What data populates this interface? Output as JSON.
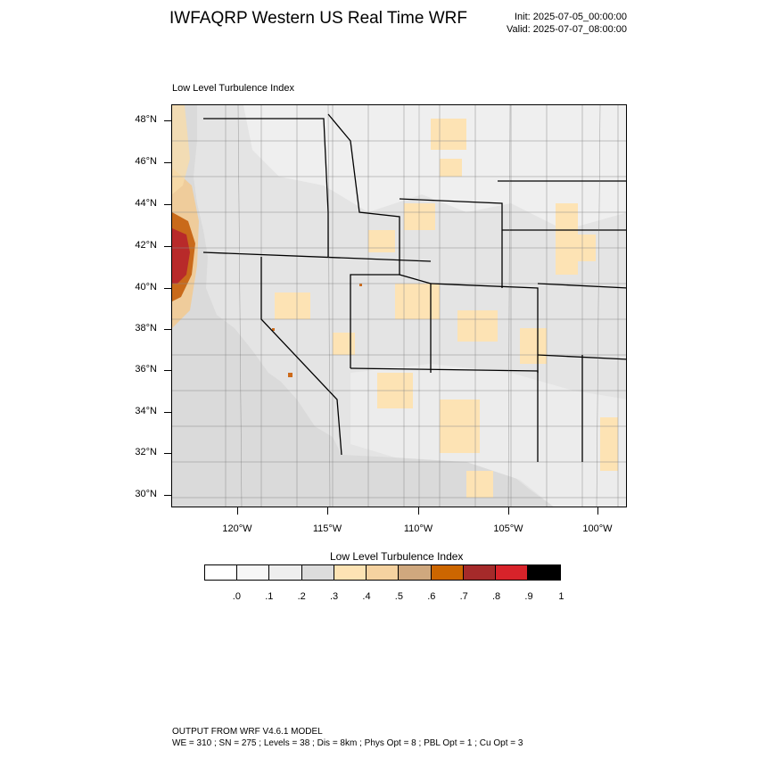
{
  "header": {
    "title": "IWFAQRP Western US Real Time WRF",
    "init": "Init: 2025-07-05_00:00:00",
    "valid": "Valid: 2025-07-07_08:00:00"
  },
  "map": {
    "subtitle": "Low Level Turbulence Index",
    "lat_labels": [
      "48°N",
      "46°N",
      "44°N",
      "42°N",
      "40°N",
      "38°N",
      "36°N",
      "34°N",
      "32°N",
      "30°N"
    ],
    "lon_labels": [
      "120°W",
      "115°W",
      "110°W",
      "105°W",
      "100°W"
    ],
    "colors": {
      "land_base": "#e0e0e0",
      "ocean": "#d8d8d8",
      "low_light": "#f2f2f2",
      "mid_tan": "#fde3b4",
      "coastal_tan": "#c9a47a",
      "coastal_orange": "#cc5a00",
      "coastal_red": "#c8282a",
      "boundary": "#000000"
    }
  },
  "colorbar": {
    "title": "Low Level Turbulence Index",
    "labels": [
      ".0",
      ".1",
      ".2",
      ".3",
      ".4",
      ".5",
      ".6",
      ".7",
      ".8",
      ".9",
      "1"
    ],
    "colors": [
      "#ffffff",
      "#f7f7f7",
      "#eeeeee",
      "#dcdcdc",
      "#fde3b4",
      "#f5d2a0",
      "#cfa87e",
      "#cc6600",
      "#a52a2a",
      "#d8232a",
      "#000000"
    ]
  },
  "footer": {
    "line1": "OUTPUT FROM WRF V4.6.1 MODEL",
    "line2": "WE = 310 ; SN = 275 ; Levels = 38 ; Dis = 8km ; Phys Opt = 8 ; PBL Opt = 1 ; Cu Opt = 3"
  }
}
